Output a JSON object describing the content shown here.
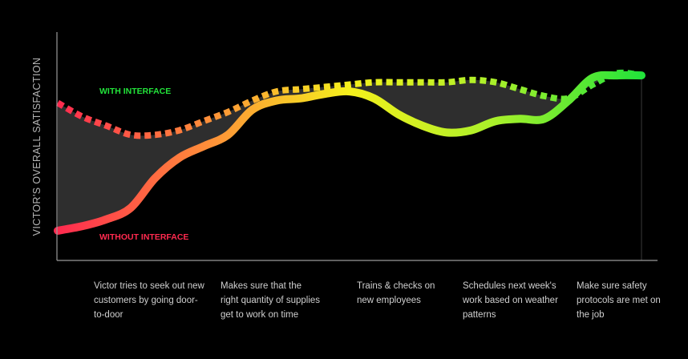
{
  "chart_data": {
    "type": "line",
    "ylabel": "VICTOR'S OVERALL SATISFACTION",
    "xlabel": "",
    "x": [
      0,
      1,
      2,
      3,
      4,
      5,
      6,
      7,
      8,
      9,
      10,
      11,
      12,
      13,
      14,
      15,
      16,
      17,
      18,
      19,
      20,
      21,
      22,
      23,
      24
    ],
    "ylim": [
      0,
      100
    ],
    "categories": [
      "Victor tries to seek out new customers by going door-to-door",
      "Makes sure that the right quantity of supplies get to work on time",
      "Trains & checks on new employees",
      "Schedules next week's work based on weather patterns",
      "Make sure safety protocols are met on the job"
    ],
    "series": [
      {
        "name": "WITH INTERFACE",
        "style": "dashed",
        "color": "#22e33a",
        "values": [
          69,
          63,
          59,
          55,
          55,
          57,
          61,
          65,
          70,
          74,
          75,
          76,
          77,
          78,
          78,
          78,
          78,
          79,
          78,
          75,
          72,
          71,
          77,
          82,
          81
        ]
      },
      {
        "name": "WITHOUT INTERFACE",
        "style": "solid",
        "values": [
          13,
          15,
          18,
          23,
          36,
          45,
          50,
          55,
          66,
          70,
          71,
          73,
          74,
          71,
          64,
          59,
          56,
          57,
          61,
          62,
          62,
          70,
          80,
          81,
          81
        ]
      }
    ],
    "gradient_colors": [
      "#ff2a4f",
      "#ff8c3a",
      "#f5f01c",
      "#a8f02a",
      "#22e33a"
    ],
    "fill_color": "#2e2e2e",
    "axis_color": "#9a9a9a",
    "grid": false,
    "legend": "inline labels"
  }
}
